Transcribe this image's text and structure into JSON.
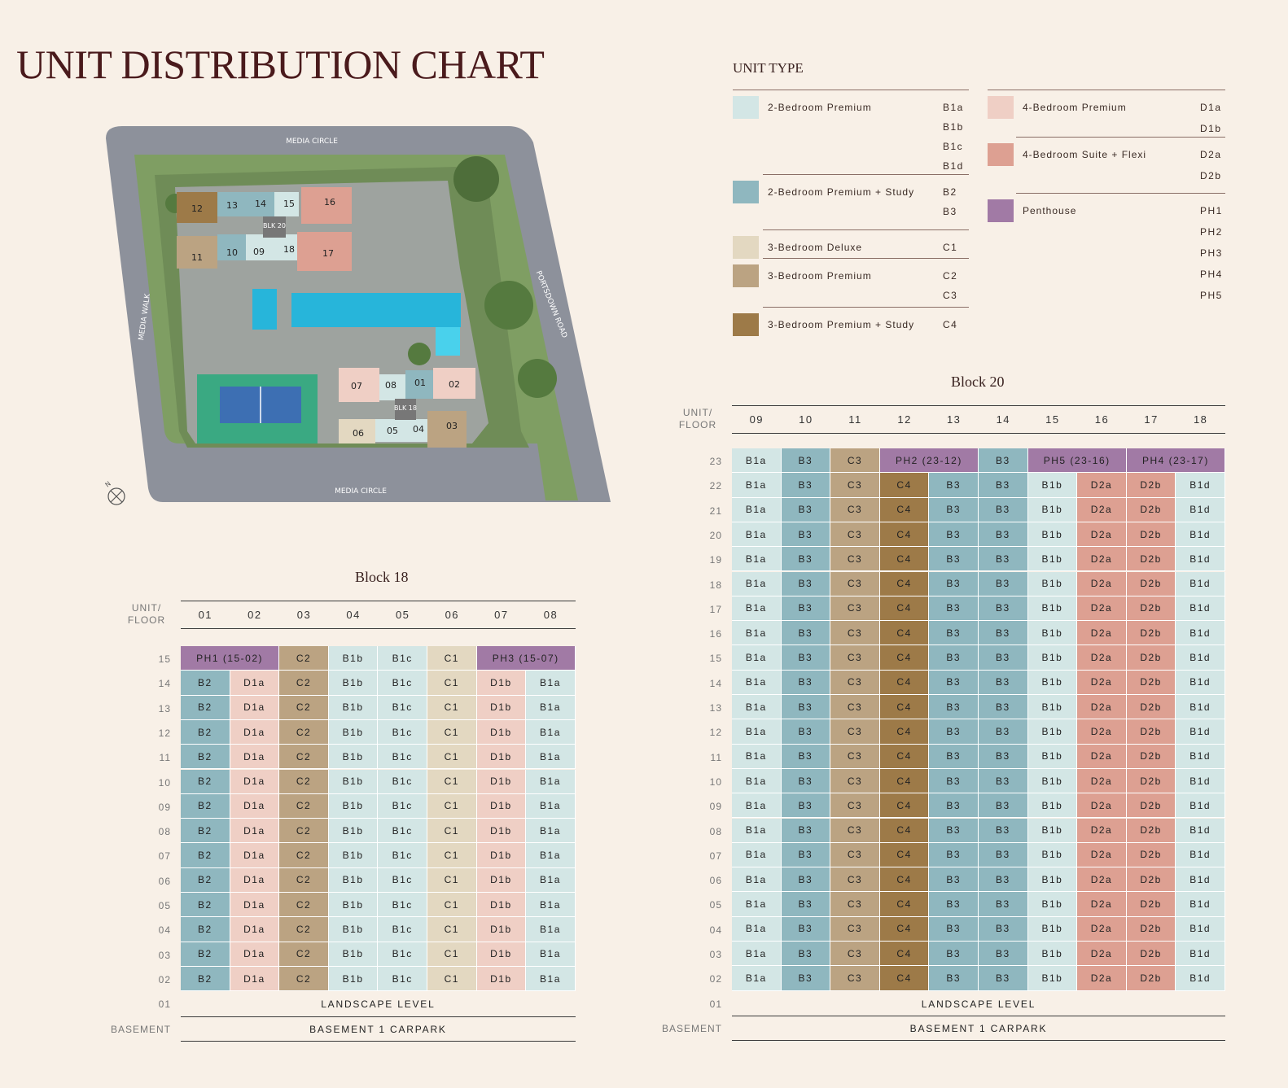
{
  "title": "UNIT DISTRIBUTION CHART",
  "colors": {
    "B1": "#d3e6e5",
    "B2B3": "#8fb7bf",
    "C1": "#e3d8c1",
    "C2C3": "#bba382",
    "C4": "#9d7a48",
    "D1": "#efcfc5",
    "D2": "#dda092",
    "PH": "#a17aa5",
    "bg": "#f8f0e7"
  },
  "sitemap": {
    "roads": {
      "top": "MEDIA CIRCLE",
      "bottom": "MEDIA CIRCLE",
      "left": "MEDIA WALK",
      "right": "PORTSDOWN ROAD"
    },
    "blk20_label": "BLK 20",
    "blk18_label": "BLK 18",
    "north": "N",
    "units20": [
      "12",
      "13",
      "14",
      "15",
      "16",
      "11",
      "10",
      "09",
      "18",
      "17"
    ],
    "units18": [
      "07",
      "08",
      "01",
      "02",
      "06",
      "05",
      "04",
      "03"
    ]
  },
  "legend": {
    "title": "UNIT TYPE",
    "left": [
      {
        "name": "2-Bedroom Premium",
        "codes": [
          "B1a",
          "B1b",
          "B1c",
          "B1d"
        ],
        "color": "#d3e6e5"
      },
      {
        "name": "2-Bedroom Premium + Study",
        "codes": [
          "B2",
          "B3"
        ],
        "color": "#8fb7bf"
      },
      {
        "name": "3-Bedroom Deluxe",
        "codes": [
          "C1"
        ],
        "color": "#e3d8c1"
      },
      {
        "name": "3-Bedroom Premium",
        "codes": [
          "C2",
          "C3"
        ],
        "color": "#bba382"
      },
      {
        "name": "3-Bedroom Premium + Study",
        "codes": [
          "C4"
        ],
        "color": "#9d7a48"
      }
    ],
    "right": [
      {
        "name": "4-Bedroom Premium",
        "codes": [
          "D1a",
          "D1b"
        ],
        "color": "#efcfc5"
      },
      {
        "name": "4-Bedroom Suite + Flexi",
        "codes": [
          "D2a",
          "D2b"
        ],
        "color": "#dda092"
      },
      {
        "name": "Penthouse",
        "codes": [
          "PH1",
          "PH2",
          "PH3",
          "PH4",
          "PH5"
        ],
        "color": "#a17aa5"
      }
    ]
  },
  "block18": {
    "title": "Block 18",
    "unit_floor_label": [
      "UNIT/",
      "FLOOR"
    ],
    "columns": [
      "01",
      "02",
      "03",
      "04",
      "05",
      "06",
      "07",
      "08"
    ],
    "top_floor": "15",
    "top_row": [
      {
        "text": "PH1 (15-02)",
        "span": 2,
        "type": "PH"
      },
      {
        "text": "C2",
        "span": 1,
        "type": "C2C3"
      },
      {
        "text": "B1b",
        "span": 1,
        "type": "B1"
      },
      {
        "text": "B1c",
        "span": 1,
        "type": "B1"
      },
      {
        "text": "C1",
        "span": 1,
        "type": "C1"
      },
      {
        "text": "PH3 (15-07)",
        "span": 2,
        "type": "PH"
      }
    ],
    "floors": [
      "14",
      "13",
      "12",
      "11",
      "10",
      "09",
      "08",
      "07",
      "06",
      "05",
      "04",
      "03",
      "02"
    ],
    "row": [
      "B2",
      "D1a",
      "C2",
      "B1b",
      "B1c",
      "C1",
      "D1b",
      "B1a"
    ],
    "row_types": [
      "B2B3",
      "D1",
      "C2C3",
      "B1",
      "B1",
      "C1",
      "D1",
      "B1"
    ],
    "landscape_floor": "01",
    "landscape": "LANDSCAPE LEVEL",
    "basement_floor": "BASEMENT",
    "basement": "BASEMENT 1 CARPARK"
  },
  "block20": {
    "title": "Block 20",
    "unit_floor_label": [
      "UNIT/",
      "FLOOR"
    ],
    "columns": [
      "09",
      "10",
      "11",
      "12",
      "13",
      "14",
      "15",
      "16",
      "17",
      "18"
    ],
    "top_floor": "23",
    "top_row": [
      {
        "text": "B1a",
        "span": 1,
        "type": "B1"
      },
      {
        "text": "B3",
        "span": 1,
        "type": "B2B3"
      },
      {
        "text": "C3",
        "span": 1,
        "type": "C2C3"
      },
      {
        "text": "PH2 (23-12)",
        "span": 2,
        "type": "PH"
      },
      {
        "text": "B3",
        "span": 1,
        "type": "B2B3"
      },
      {
        "text": "PH5 (23-16)",
        "span": 2,
        "type": "PH"
      },
      {
        "text": "PH4 (23-17)",
        "span": 2,
        "type": "PH"
      }
    ],
    "floors": [
      "22",
      "21",
      "20",
      "19",
      "18",
      "17",
      "16",
      "15",
      "14",
      "13",
      "12",
      "11",
      "10",
      "09",
      "08",
      "07",
      "06",
      "05",
      "04",
      "03",
      "02"
    ],
    "row": [
      "B1a",
      "B3",
      "C3",
      "C4",
      "B3",
      "B3",
      "B1b",
      "D2a",
      "D2b",
      "B1d"
    ],
    "row_types": [
      "B1",
      "B2B3",
      "C2C3",
      "C4",
      "B2B3",
      "B2B3",
      "B1",
      "D2",
      "D2",
      "B1"
    ],
    "landscape_floor": "01",
    "landscape": "LANDSCAPE LEVEL",
    "basement_floor": "BASEMENT",
    "basement": "BASEMENT 1 CARPARK"
  }
}
